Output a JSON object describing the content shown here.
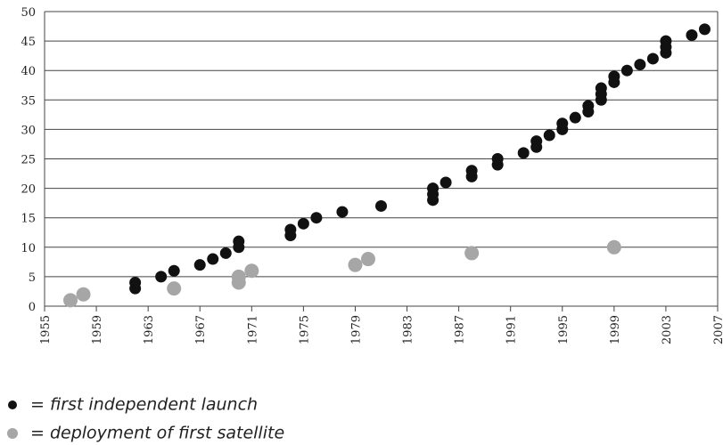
{
  "chart_data": {
    "type": "scatter",
    "series": [
      {
        "name": "= first independent launch",
        "color": "#111111",
        "x": [
          1962,
          1962,
          1964,
          1965,
          1967,
          1968,
          1969,
          1970,
          1970,
          1974,
          1974,
          1975,
          1976,
          1978,
          1981,
          1985,
          1985,
          1985,
          1986,
          1988,
          1988,
          1990,
          1990,
          1992,
          1993,
          1993,
          1994,
          1995,
          1995,
          1996,
          1997,
          1997,
          1998,
          1998,
          1998,
          1999,
          1999,
          2000,
          2001,
          2002,
          2003,
          2003,
          2003,
          2005,
          2006
        ],
        "values": [
          3,
          4,
          5,
          6,
          7,
          8,
          9,
          10,
          11,
          12,
          13,
          14,
          15,
          16,
          17,
          18,
          19,
          20,
          21,
          22,
          23,
          24,
          25,
          26,
          27,
          28,
          29,
          30,
          31,
          32,
          33,
          34,
          35,
          36,
          37,
          38,
          39,
          40,
          41,
          42,
          43,
          44,
          45,
          46,
          47
        ]
      },
      {
        "name": "= deployment of first satellite",
        "color": "#a6a6a6",
        "x": [
          1957,
          1958,
          1965,
          1970,
          1970,
          1971,
          1979,
          1980,
          1988,
          1999
        ],
        "values": [
          1,
          2,
          3,
          4,
          5,
          6,
          7,
          8,
          9,
          10
        ]
      }
    ],
    "xlim": [
      1955,
      2007
    ],
    "xticks": [
      1955,
      1959,
      1963,
      1967,
      1971,
      1975,
      1979,
      1983,
      1987,
      1991,
      1995,
      1999,
      2003,
      2007
    ],
    "ylim": [
      0,
      50
    ],
    "yticks": [
      0,
      5,
      10,
      15,
      20,
      25,
      30,
      35,
      40,
      45,
      50
    ],
    "grid": true
  }
}
